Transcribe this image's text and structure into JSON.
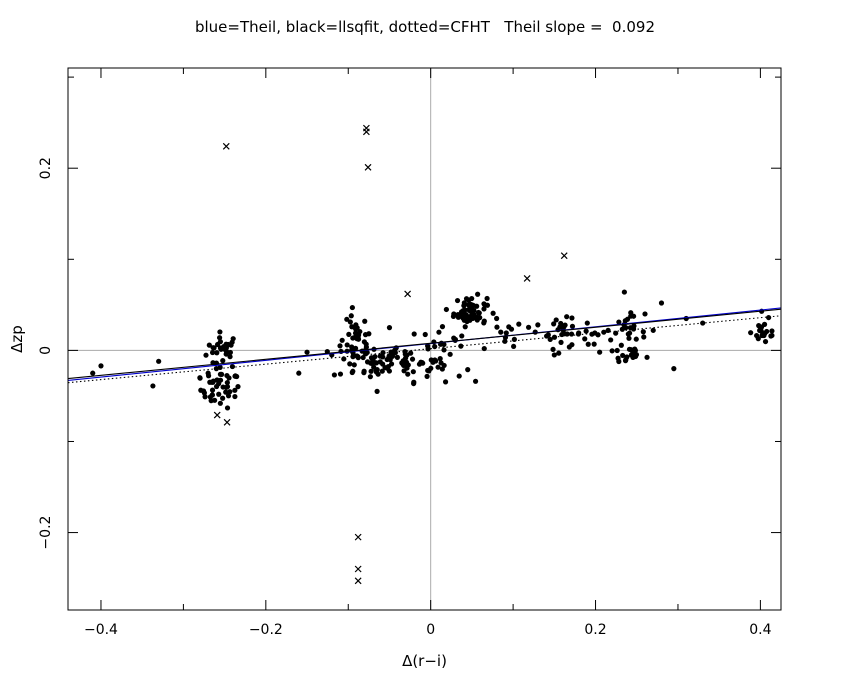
{
  "chart_data": {
    "type": "scatter",
    "title": "blue=Theil, black=llsqfit, dotted=CFHT   Theil slope =  0.092",
    "xlabel": "Δ(r−i)",
    "ylabel": "Δzp",
    "xlim": [
      -0.44,
      0.425
    ],
    "ylim": [
      -0.285,
      0.31
    ],
    "xticks_major": [
      -0.4,
      -0.2,
      0,
      0.2,
      0.4
    ],
    "xtick_labels": [
      "−0.4",
      "−0.2",
      "0",
      "0.2",
      "0.4"
    ],
    "yticks_major": [
      -0.2,
      0,
      0.2
    ],
    "ytick_labels": [
      "−0.2",
      "0",
      "0.2"
    ],
    "reference_lines": {
      "x": 0,
      "y": 0,
      "color": "#aaaaaa"
    },
    "fits": [
      {
        "name": "Theil",
        "style": "solid",
        "color": "#0000cc",
        "slope": 0.092,
        "intercept": 0.0075
      },
      {
        "name": "llsqfit",
        "style": "solid",
        "color": "#000000",
        "slope": 0.088,
        "intercept": 0.0078
      },
      {
        "name": "CFHT",
        "style": "dotted",
        "color": "#000000",
        "slope": 0.085,
        "intercept": 0.0019
      }
    ],
    "outliers": [
      [
        -0.248,
        0.224
      ],
      [
        -0.078,
        0.244
      ],
      [
        -0.078,
        0.24
      ],
      [
        -0.076,
        0.201
      ],
      [
        -0.028,
        0.062
      ],
      [
        0.117,
        0.079
      ],
      [
        0.162,
        0.104
      ],
      [
        -0.259,
        -0.071
      ],
      [
        -0.247,
        -0.079
      ],
      [
        -0.088,
        -0.205
      ],
      [
        -0.088,
        -0.24
      ],
      [
        -0.088,
        -0.253
      ]
    ],
    "clusters": [
      {
        "cx": -0.252,
        "cy": 0.0,
        "sx": 0.01,
        "sy": 0.01,
        "n": 30
      },
      {
        "cx": -0.255,
        "cy": -0.043,
        "sx": 0.012,
        "sy": 0.01,
        "n": 40
      },
      {
        "cx": -0.09,
        "cy": 0.008,
        "sx": 0.01,
        "sy": 0.012,
        "n": 35
      },
      {
        "cx": -0.075,
        "cy": -0.012,
        "sx": 0.022,
        "sy": 0.01,
        "n": 45
      },
      {
        "cx": -0.03,
        "cy": -0.01,
        "sx": 0.018,
        "sy": 0.01,
        "n": 25
      },
      {
        "cx": 0.0,
        "cy": -0.018,
        "sx": 0.02,
        "sy": 0.008,
        "n": 25
      },
      {
        "cx": 0.015,
        "cy": 0.008,
        "sx": 0.012,
        "sy": 0.008,
        "n": 12
      },
      {
        "cx": 0.048,
        "cy": 0.043,
        "sx": 0.01,
        "sy": 0.008,
        "n": 60
      },
      {
        "cx": 0.1,
        "cy": 0.022,
        "sx": 0.02,
        "sy": 0.008,
        "n": 12
      },
      {
        "cx": 0.16,
        "cy": 0.018,
        "sx": 0.012,
        "sy": 0.008,
        "n": 22
      },
      {
        "cx": 0.24,
        "cy": 0.018,
        "sx": 0.01,
        "sy": 0.01,
        "n": 25
      },
      {
        "cx": 0.24,
        "cy": -0.005,
        "sx": 0.008,
        "sy": 0.006,
        "n": 15
      },
      {
        "cx": 0.2,
        "cy": 0.018,
        "sx": 0.02,
        "sy": 0.01,
        "n": 12
      },
      {
        "cx": 0.405,
        "cy": 0.02,
        "sx": 0.008,
        "sy": 0.007,
        "n": 18
      }
    ],
    "scatter_points": [
      [
        -0.4,
        -0.017
      ],
      [
        -0.41,
        -0.025
      ],
      [
        -0.337,
        -0.039
      ],
      [
        -0.33,
        -0.012
      ],
      [
        -0.28,
        -0.03
      ],
      [
        -0.27,
        -0.025
      ],
      [
        -0.26,
        -0.02
      ],
      [
        -0.15,
        -0.002
      ],
      [
        -0.16,
        -0.025
      ],
      [
        -0.12,
        -0.005
      ],
      [
        -0.11,
        0.005
      ],
      [
        -0.095,
        0.047
      ],
      [
        -0.08,
        0.032
      ],
      [
        -0.065,
        -0.045
      ],
      [
        -0.05,
        0.025
      ],
      [
        -0.02,
        0.018
      ],
      [
        0.01,
        0.02
      ],
      [
        0.03,
        0.012
      ],
      [
        0.065,
        0.002
      ],
      [
        0.08,
        0.035
      ],
      [
        0.09,
        0.01
      ],
      [
        0.13,
        0.028
      ],
      [
        0.145,
        0.012
      ],
      [
        0.15,
        -0.005
      ],
      [
        0.165,
        0.037
      ],
      [
        0.19,
        0.03
      ],
      [
        0.205,
        -0.002
      ],
      [
        0.21,
        0.02
      ],
      [
        0.235,
        0.064
      ],
      [
        0.26,
        0.04
      ],
      [
        0.27,
        0.022
      ],
      [
        0.28,
        0.052
      ],
      [
        0.295,
        -0.02
      ],
      [
        0.31,
        0.035
      ],
      [
        0.33,
        0.03
      ],
      [
        0.41,
        0.036
      ]
    ]
  }
}
